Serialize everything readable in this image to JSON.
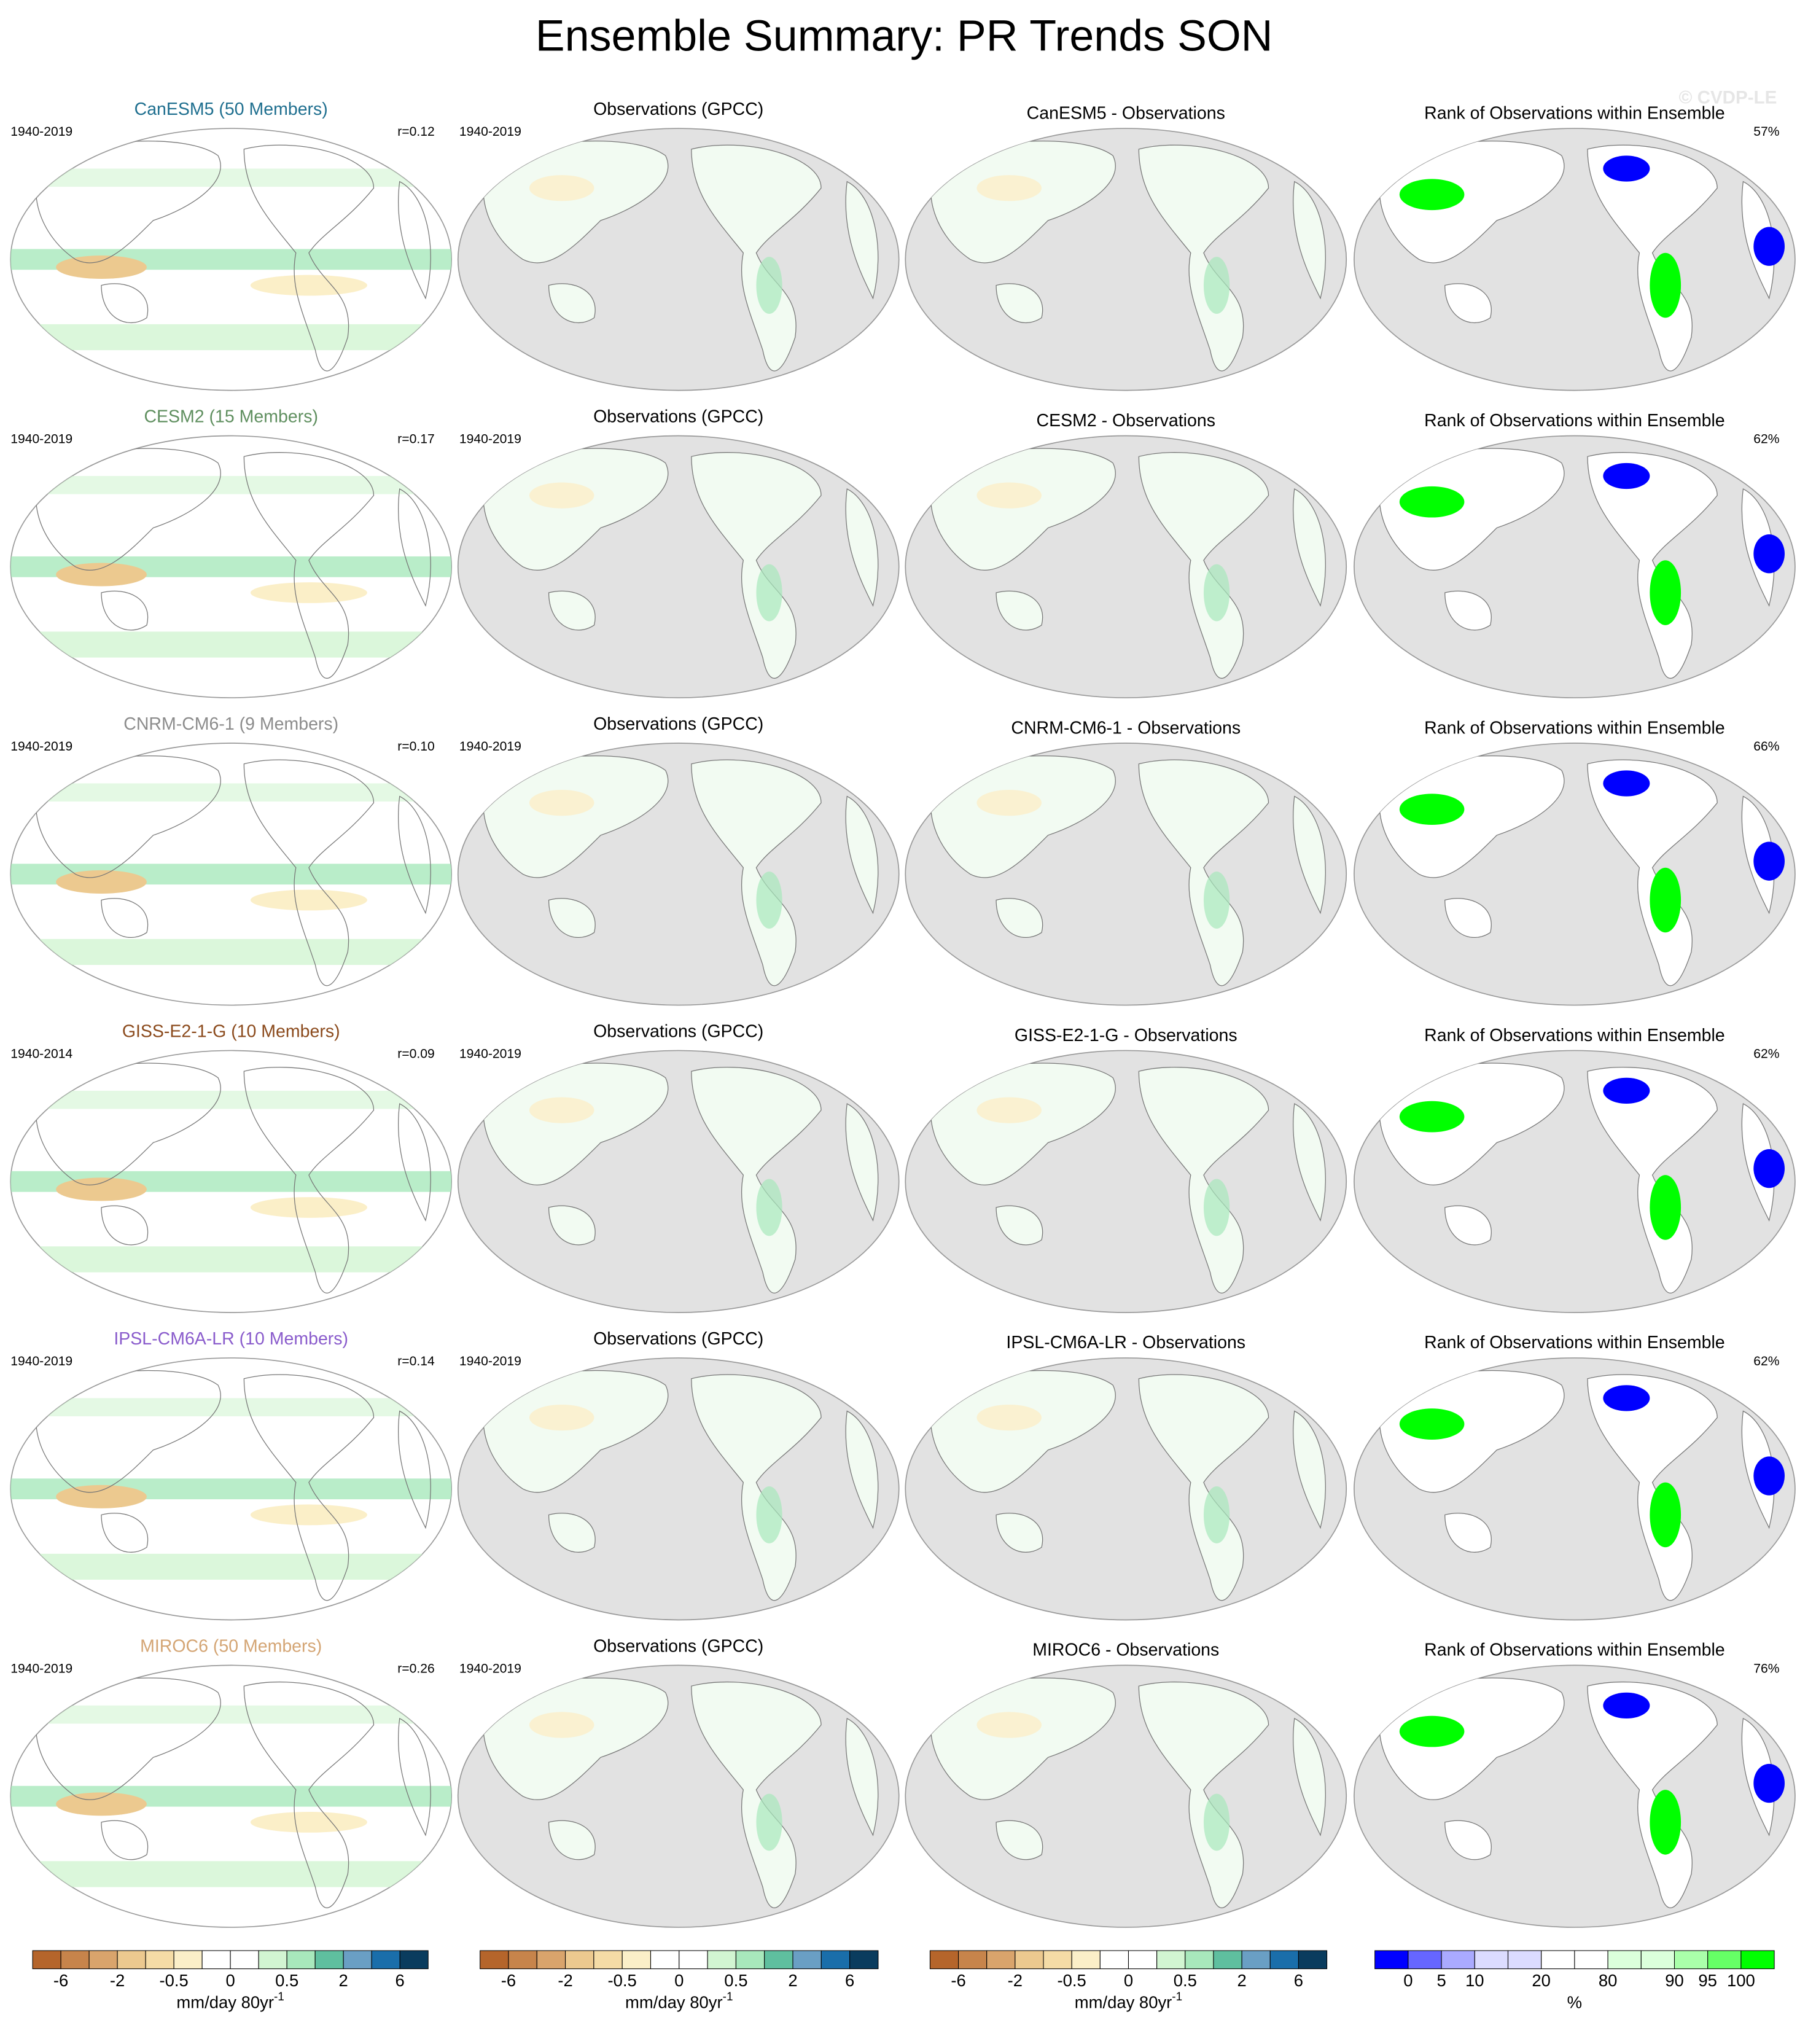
{
  "title": "Ensemble Summary: PR Trends SON",
  "watermark": "© CVDP-LE",
  "rows": [
    {
      "model": {
        "title": "CanESM5 (50 Members)",
        "color": "#1f6f8f",
        "period": "1940-2019",
        "r": "r=0.12"
      },
      "obs": {
        "title": "Observations (GPCC)",
        "period": "1940-2019"
      },
      "diff": {
        "title": "CanESM5 - Observations"
      },
      "rank": {
        "title": "Rank of Observations within Ensemble",
        "pct": "57%"
      }
    },
    {
      "model": {
        "title": "CESM2 (15 Members)",
        "color": "#5f8f5f",
        "period": "1940-2019",
        "r": "r=0.17"
      },
      "obs": {
        "title": "Observations (GPCC)",
        "period": "1940-2019"
      },
      "diff": {
        "title": "CESM2 - Observations"
      },
      "rank": {
        "title": "Rank of Observations within Ensemble",
        "pct": "62%"
      }
    },
    {
      "model": {
        "title": "CNRM-CM6-1 (9 Members)",
        "color": "#8c8c8c",
        "period": "1940-2019",
        "r": "r=0.10"
      },
      "obs": {
        "title": "Observations (GPCC)",
        "period": "1940-2019"
      },
      "diff": {
        "title": "CNRM-CM6-1 - Observations"
      },
      "rank": {
        "title": "Rank of Observations within Ensemble",
        "pct": "66%"
      }
    },
    {
      "model": {
        "title": "GISS-E2-1-G (10 Members)",
        "color": "#8b4a1c",
        "period": "1940-2014",
        "r": "r=0.09"
      },
      "obs": {
        "title": "Observations (GPCC)",
        "period": "1940-2019"
      },
      "diff": {
        "title": "GISS-E2-1-G - Observations"
      },
      "rank": {
        "title": "Rank of Observations within Ensemble",
        "pct": "62%"
      }
    },
    {
      "model": {
        "title": "IPSL-CM6A-LR (10 Members)",
        "color": "#8a5ccc",
        "period": "1940-2019",
        "r": "r=0.14"
      },
      "obs": {
        "title": "Observations (GPCC)",
        "period": "1940-2019"
      },
      "diff": {
        "title": "IPSL-CM6A-LR - Observations"
      },
      "rank": {
        "title": "Rank of Observations within Ensemble",
        "pct": "62%"
      }
    },
    {
      "model": {
        "title": "MIROC6 (50 Members)",
        "color": "#d4a574",
        "period": "1940-2019",
        "r": "r=0.26"
      },
      "obs": {
        "title": "Observations (GPCC)",
        "period": "1940-2019"
      },
      "diff": {
        "title": "MIROC6 - Observations"
      },
      "rank": {
        "title": "Rank of Observations within Ensemble",
        "pct": "76%"
      }
    }
  ],
  "colorbars": [
    {
      "colors": [
        "#b5652b",
        "#c7844b",
        "#d9a46c",
        "#ecc98f",
        "#f5dca6",
        "#fbefc8",
        "#ffffff",
        "#ffffff",
        "#d2f5d2",
        "#a8e8bc",
        "#5fbf9f",
        "#6a9fc4",
        "#1a6eaa",
        "#0a3c5e"
      ],
      "labels": [
        -6,
        -2,
        -0.5,
        0,
        0.5,
        2,
        6
      ],
      "unit": "mm/day 80yr",
      "unit_sup": "-1"
    },
    {
      "colors": [
        "#b5652b",
        "#c7844b",
        "#d9a46c",
        "#ecc98f",
        "#f5dca6",
        "#fbefc8",
        "#ffffff",
        "#ffffff",
        "#d2f5d2",
        "#a8e8bc",
        "#5fbf9f",
        "#6a9fc4",
        "#1a6eaa",
        "#0a3c5e"
      ],
      "labels": [
        -6,
        -2,
        -0.5,
        0,
        0.5,
        2,
        6
      ],
      "unit": "mm/day 80yr",
      "unit_sup": "-1"
    },
    {
      "colors": [
        "#b5652b",
        "#c7844b",
        "#d9a46c",
        "#ecc98f",
        "#f5dca6",
        "#fbefc8",
        "#ffffff",
        "#ffffff",
        "#d2f5d2",
        "#a8e8bc",
        "#5fbf9f",
        "#6a9fc4",
        "#1a6eaa",
        "#0a3c5e"
      ],
      "labels": [
        -6,
        -2,
        -0.5,
        0,
        0.5,
        2,
        6
      ],
      "unit": "mm/day 80yr",
      "unit_sup": "-1"
    },
    {
      "colors": [
        "#0000ff",
        "#6666ff",
        "#aaaaff",
        "#dcdcff",
        "#dcdcff",
        "#ffffff",
        "#ffffff",
        "#dcffdc",
        "#dcffdc",
        "#aaffaa",
        "#66ff66",
        "#00ff00"
      ],
      "labels": [
        0,
        5,
        10,
        20,
        80,
        90,
        95,
        100
      ],
      "unit": "%"
    }
  ]
}
